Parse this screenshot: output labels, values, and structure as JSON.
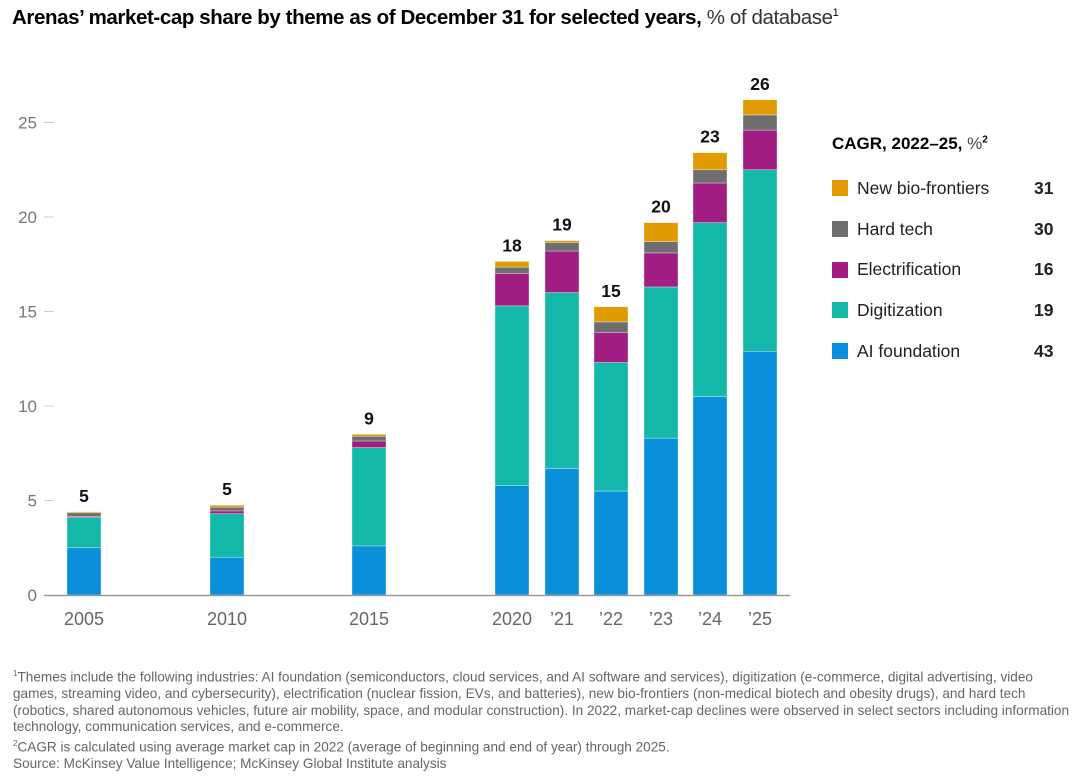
{
  "title": {
    "bold": "Arenas’ market-cap share by theme as of December 31 for selected years,",
    "light": " % of database",
    "sup": "1"
  },
  "legend": {
    "title_bold": "CAGR, 2022–25,",
    "title_light": " %",
    "title_sup": "2"
  },
  "footnotes": {
    "note1_sup": "1",
    "note1": "Themes include the following industries: AI foundation (semiconductors, cloud services, and AI software and services), digitization (e-commerce, digital advertising, video games, streaming video, and cybersecurity), electrification (nuclear fission, EVs, and batteries), new bio-frontiers (non-medical biotech and obesity drugs), and hard tech (robotics, shared autonomous vehicles, future air mobility, space, and modular construction). In 2022, market-cap declines were observed in select sectors including information technology, communication services, and e-commerce.",
    "note2_sup": "2",
    "note2": "CAGR is calculated using average market cap in 2022 (average of beginning and end of year) through 2025.",
    "source": "Source: McKinsey Value Intelligence; McKinsey Global Institute analysis"
  },
  "chart_data": {
    "type": "bar",
    "stacked": true,
    "title": "Arenas’ market-cap share by theme as of December 31 for selected years, % of database",
    "xlabel": "",
    "ylabel": "% of database",
    "ylim": [
      0,
      27
    ],
    "yticks": [
      0,
      5,
      10,
      15,
      20,
      25
    ],
    "grid": false,
    "legend_position": "right",
    "categories": [
      "2005",
      "2010",
      "2015",
      "2020",
      "’21",
      "’22",
      "’23",
      "’24",
      "’25"
    ],
    "totals": [
      "5",
      "5",
      "9",
      "18",
      "19",
      "15",
      "20",
      "23",
      "26"
    ],
    "series": [
      {
        "name": "AI foundation",
        "key": "ai-foundation",
        "color": "#0A8FDB",
        "cagr": "43",
        "values": [
          2.5,
          2.0,
          2.6,
          5.8,
          6.7,
          5.5,
          8.3,
          10.5,
          12.9
        ]
      },
      {
        "name": "Digitization",
        "key": "digitization",
        "color": "#14B8A8",
        "cagr": "19",
        "values": [
          1.6,
          2.3,
          5.2,
          9.5,
          9.3,
          6.8,
          8.0,
          9.2,
          9.6
        ]
      },
      {
        "name": "Electrification",
        "key": "electrification",
        "color": "#A01E82",
        "cagr": "16",
        "values": [
          0.05,
          0.15,
          0.35,
          1.7,
          2.2,
          1.6,
          1.8,
          2.1,
          2.1
        ]
      },
      {
        "name": "Hard tech",
        "key": "hard-tech",
        "color": "#6E6E6E",
        "cagr": "30",
        "values": [
          0.2,
          0.2,
          0.25,
          0.35,
          0.45,
          0.55,
          0.6,
          0.7,
          0.8
        ]
      },
      {
        "name": "New bio-frontiers",
        "key": "new-bio-frontiers",
        "color": "#E09B00",
        "cagr": "31",
        "values": [
          0.05,
          0.1,
          0.1,
          0.3,
          0.1,
          0.8,
          1.0,
          0.9,
          0.8
        ]
      }
    ]
  }
}
